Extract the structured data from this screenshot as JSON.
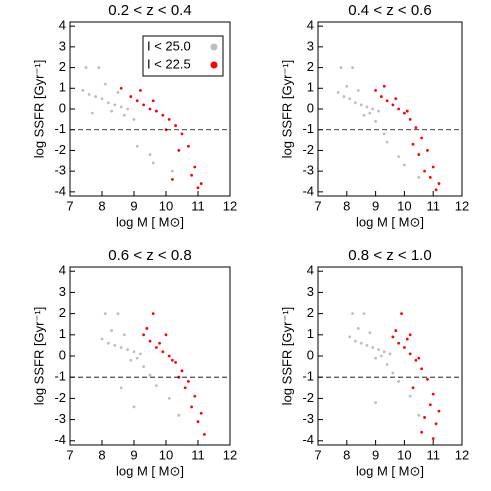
{
  "chart_data": [
    {
      "type": "scatter",
      "title": "0.2 < z < 0.4",
      "xlabel": "log M [ M⊙]",
      "ylabel": "log SSFR [Gyr⁻¹]",
      "xlim": [
        7,
        12
      ],
      "ylim": [
        -4.2,
        4.2
      ],
      "xticks": [
        7,
        8,
        9,
        10,
        11,
        12
      ],
      "yticks": [
        -4,
        -3,
        -2,
        -1,
        0,
        1,
        2,
        3,
        4
      ],
      "hline": -1,
      "legend": "upper right",
      "series": [
        {
          "name": "I < 25.0",
          "color": "#bdbdbd",
          "x": [
            7.4,
            7.6,
            7.8,
            8.0,
            8.2,
            8.4,
            8.6,
            8.8,
            7.5,
            7.9,
            8.3,
            8.7,
            9.1,
            9.5,
            8.1,
            8.5,
            7.7,
            9.0,
            9.6,
            10.2
          ],
          "values": [
            0.9,
            0.7,
            0.6,
            0.5,
            0.3,
            0.2,
            0.1,
            0.0,
            2.0,
            2.0,
            -0.1,
            -0.3,
            -1.8,
            -2.2,
            1.2,
            0.8,
            -0.2,
            -0.5,
            -2.6,
            -3.0
          ]
        },
        {
          "name": "I < 22.5",
          "color": "#ff0000",
          "x": [
            8.6,
            8.9,
            9.1,
            9.3,
            9.5,
            9.7,
            9.9,
            10.1,
            10.3,
            10.5,
            10.7,
            10.9,
            11.1,
            9.2,
            9.6,
            10.0,
            10.4,
            10.8,
            11.0,
            10.2
          ],
          "values": [
            1.0,
            0.6,
            0.4,
            0.2,
            0.0,
            -0.1,
            -0.3,
            -0.5,
            -0.8,
            -1.2,
            -1.8,
            -2.8,
            -3.6,
            0.9,
            0.4,
            -1.0,
            -2.0,
            -3.2,
            -3.8,
            -3.4
          ]
        }
      ]
    },
    {
      "type": "scatter",
      "title": "0.4 < z < 0.6",
      "xlabel": "log M [ M⊙]",
      "ylabel": "log SSFR [Gyr⁻¹]",
      "xlim": [
        7,
        12
      ],
      "ylim": [
        -4.2,
        4.2
      ],
      "xticks": [
        7,
        8,
        9,
        10,
        11,
        12
      ],
      "yticks": [
        -4,
        -3,
        -2,
        -1,
        0,
        1,
        2,
        3,
        4
      ],
      "hline": -1,
      "series": [
        {
          "color": "#bdbdbd",
          "x": [
            7.7,
            7.9,
            8.1,
            8.3,
            8.5,
            8.7,
            8.9,
            9.1,
            7.8,
            8.2,
            8.6,
            9.0,
            9.4,
            9.8,
            8.0,
            8.4,
            8.8,
            9.3,
            10.0,
            10.5
          ],
          "values": [
            0.8,
            0.6,
            0.5,
            0.3,
            0.2,
            0.1,
            0.0,
            -0.1,
            2.0,
            2.0,
            -0.3,
            -0.6,
            -1.6,
            -2.3,
            1.1,
            0.9,
            -0.2,
            -1.2,
            -2.7,
            -3.3
          ]
        },
        {
          "color": "#ff0000",
          "x": [
            9.0,
            9.2,
            9.4,
            9.6,
            9.8,
            10.0,
            10.2,
            10.4,
            10.6,
            10.8,
            11.0,
            11.2,
            9.3,
            9.7,
            10.1,
            10.5,
            10.9,
            11.1,
            10.3,
            10.7
          ],
          "values": [
            0.9,
            0.6,
            0.4,
            0.2,
            0.0,
            -0.2,
            -0.5,
            -0.9,
            -1.4,
            -2.0,
            -2.8,
            -3.6,
            1.1,
            0.5,
            -0.1,
            -2.2,
            -3.3,
            -3.9,
            -1.7,
            -3.0
          ]
        }
      ]
    },
    {
      "type": "scatter",
      "title": "0.6 < z < 0.8",
      "xlabel": "log M [ M⊙]",
      "ylabel": "log SSFR [Gyr⁻¹]",
      "xlim": [
        7,
        12
      ],
      "ylim": [
        -4.2,
        4.2
      ],
      "xticks": [
        7,
        8,
        9,
        10,
        11,
        12
      ],
      "yticks": [
        -4,
        -3,
        -2,
        -1,
        0,
        1,
        2,
        3,
        4
      ],
      "hline": -1,
      "series": [
        {
          "color": "#bdbdbd",
          "x": [
            8.0,
            8.2,
            8.4,
            8.6,
            8.8,
            9.0,
            9.2,
            8.1,
            8.5,
            8.9,
            9.3,
            9.7,
            10.1,
            8.3,
            8.7,
            9.1,
            9.5,
            10.4,
            8.6,
            9.0
          ],
          "values": [
            0.8,
            0.6,
            0.5,
            0.4,
            0.3,
            0.2,
            0.1,
            2.0,
            2.0,
            -0.2,
            -0.5,
            -1.4,
            -2.0,
            1.2,
            1.0,
            -0.1,
            -0.9,
            -2.8,
            -1.5,
            -2.4
          ]
        },
        {
          "color": "#ff0000",
          "x": [
            9.3,
            9.5,
            9.7,
            9.9,
            10.1,
            10.3,
            10.5,
            10.7,
            10.9,
            11.1,
            9.4,
            9.8,
            10.2,
            10.6,
            11.0,
            10.4,
            10.8,
            11.2,
            9.6,
            10.0
          ],
          "values": [
            1.0,
            0.7,
            0.4,
            0.2,
            0.0,
            -0.3,
            -0.7,
            -1.2,
            -1.9,
            -2.7,
            1.3,
            0.6,
            -0.2,
            -1.5,
            -3.1,
            -1.0,
            -2.4,
            -3.7,
            2.0,
            1.0
          ]
        }
      ]
    },
    {
      "type": "scatter",
      "title": "0.8 < z < 1.0",
      "xlabel": "log M [ M⊙]",
      "ylabel": "log SSFR [Gyr⁻¹]",
      "xlim": [
        7,
        12
      ],
      "ylim": [
        -4.2,
        4.2
      ],
      "xticks": [
        7,
        8,
        9,
        10,
        11,
        12
      ],
      "yticks": [
        -4,
        -3,
        -2,
        -1,
        0,
        1,
        2,
        3,
        4
      ],
      "hline": -1,
      "series": [
        {
          "color": "#bdbdbd",
          "x": [
            8.1,
            8.3,
            8.5,
            8.7,
            8.9,
            9.1,
            9.3,
            9.5,
            8.2,
            8.6,
            9.0,
            9.4,
            9.8,
            10.2,
            8.4,
            8.8,
            9.2,
            9.6,
            10.5,
            9.0
          ],
          "values": [
            0.9,
            0.7,
            0.6,
            0.5,
            0.4,
            0.3,
            0.2,
            0.1,
            2.0,
            2.0,
            -0.1,
            -0.4,
            -1.2,
            -1.9,
            1.3,
            1.1,
            0.0,
            -0.8,
            -2.8,
            -2.2
          ]
        },
        {
          "color": "#ff0000",
          "x": [
            9.6,
            9.8,
            10.0,
            10.2,
            10.4,
            10.6,
            10.8,
            11.0,
            11.2,
            9.7,
            10.1,
            10.5,
            10.9,
            11.1,
            10.3,
            10.7,
            9.9,
            10.2,
            10.6,
            11.0
          ],
          "values": [
            0.9,
            0.6,
            0.4,
            0.1,
            -0.2,
            -0.6,
            -1.1,
            -1.8,
            -2.6,
            1.2,
            0.8,
            -0.1,
            -2.3,
            -3.2,
            -1.5,
            -2.9,
            2.0,
            1.0,
            -3.6,
            -3.9
          ]
        }
      ]
    }
  ]
}
